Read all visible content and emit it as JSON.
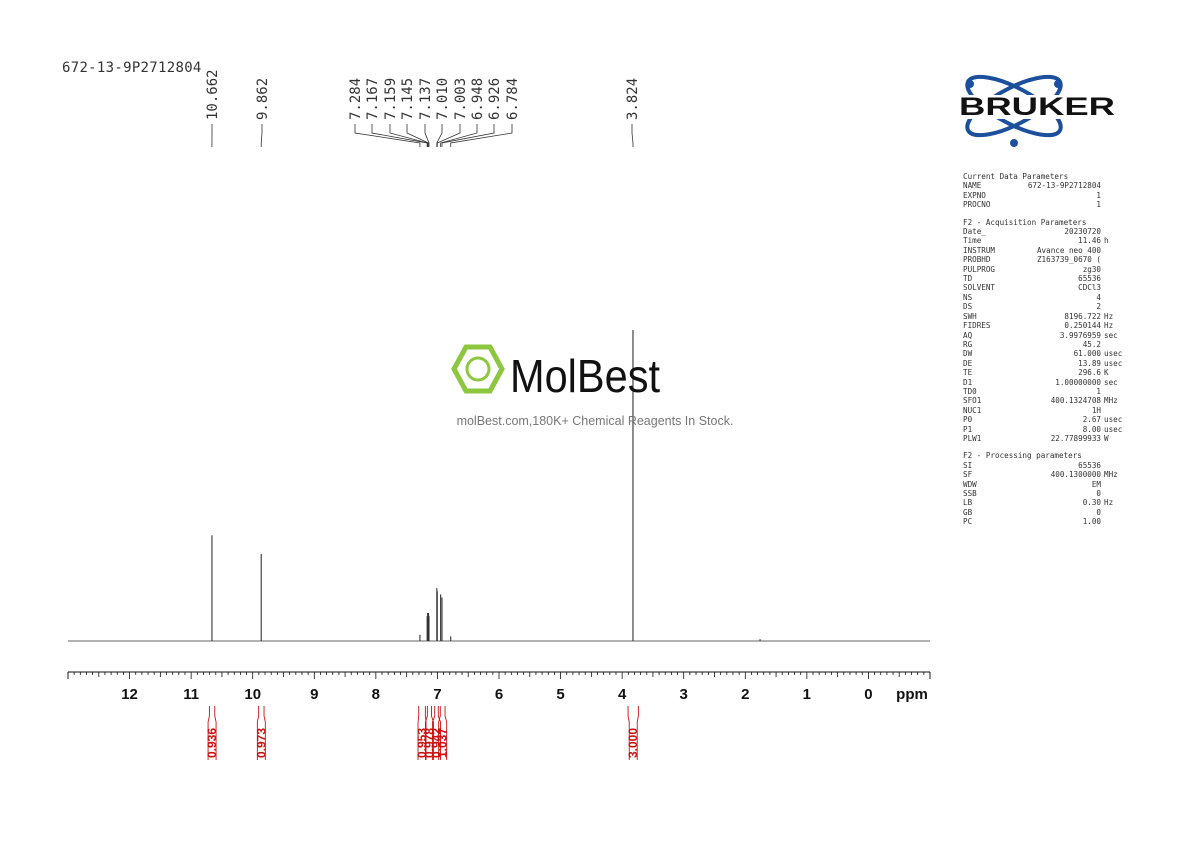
{
  "sample_title": "672-13-9P2712804",
  "watermark": {
    "brand": "MolBest",
    "tagline": "molBest.com,180K+ Chemical Reagents In Stock."
  },
  "logo": {
    "text": "BRUKER",
    "icon": "atom-orbit-icon",
    "color": "#1c4f9c"
  },
  "chart_data": {
    "type": "line",
    "title": "",
    "xlabel": "ppm",
    "ylabel": "",
    "xlim": [
      13,
      -1
    ],
    "x_reversed": true,
    "grid": false,
    "x_ticks": [
      "12",
      "11",
      "10",
      "9",
      "8",
      "7",
      "6",
      "5",
      "4",
      "3",
      "2",
      "1",
      "0"
    ],
    "peak_labels": [
      "10.662",
      "9.862",
      "7.284",
      "7.167",
      "7.159",
      "7.145",
      "7.137",
      "7.010",
      "7.003",
      "6.948",
      "6.926",
      "6.784",
      "3.824"
    ],
    "peaks": [
      {
        "ppm": 10.662,
        "height": 0.34
      },
      {
        "ppm": 9.862,
        "height": 0.28
      },
      {
        "ppm": 7.284,
        "height": 0.02
      },
      {
        "ppm": 7.167,
        "height": 0.08
      },
      {
        "ppm": 7.159,
        "height": 0.09
      },
      {
        "ppm": 7.145,
        "height": 0.09
      },
      {
        "ppm": 7.137,
        "height": 0.08
      },
      {
        "ppm": 7.01,
        "height": 0.17
      },
      {
        "ppm": 7.003,
        "height": 0.16
      },
      {
        "ppm": 6.948,
        "height": 0.15
      },
      {
        "ppm": 6.926,
        "height": 0.14
      },
      {
        "ppm": 6.784,
        "height": 0.015
      },
      {
        "ppm": 3.824,
        "height": 1.0
      },
      {
        "ppm": 1.76,
        "height": 0.006
      }
    ],
    "integrals": [
      {
        "from": 10.72,
        "to": 10.6,
        "value": "0.936"
      },
      {
        "from": 9.92,
        "to": 9.8,
        "value": "0.973"
      },
      {
        "from": 7.32,
        "to": 7.18,
        "value": "0.953"
      },
      {
        "from": 7.18,
        "to": 7.08,
        "value": "0.978"
      },
      {
        "from": 7.06,
        "to": 6.97,
        "value": "0.942"
      },
      {
        "from": 6.97,
        "to": 6.86,
        "value": "1.037"
      },
      {
        "from": 3.92,
        "to": 3.72,
        "value": "3.000"
      }
    ],
    "color": "#333333",
    "integral_color": "#cc1111"
  },
  "params": {
    "sections": [
      {
        "title": "Current Data Parameters",
        "rows": [
          {
            "key": "NAME",
            "value": "672-13-9P2712804",
            "unit": ""
          },
          {
            "key": "EXPNO",
            "value": "1",
            "unit": ""
          },
          {
            "key": "PROCNO",
            "value": "1",
            "unit": ""
          }
        ]
      },
      {
        "title": "F2 - Acquisition Parameters",
        "rows": [
          {
            "key": "Date_",
            "value": "20230720",
            "unit": ""
          },
          {
            "key": "Time",
            "value": "11.46",
            "unit": "h"
          },
          {
            "key": "INSTRUM",
            "value": "Avance neo 400",
            "unit": ""
          },
          {
            "key": "PROBHD",
            "value": "Z163739_0670 (",
            "unit": ""
          },
          {
            "key": "PULPROG",
            "value": "zg30",
            "unit": ""
          },
          {
            "key": "TD",
            "value": "65536",
            "unit": ""
          },
          {
            "key": "SOLVENT",
            "value": "CDCl3",
            "unit": ""
          },
          {
            "key": "NS",
            "value": "4",
            "unit": ""
          },
          {
            "key": "DS",
            "value": "2",
            "unit": ""
          },
          {
            "key": "SWH",
            "value": "8196.722",
            "unit": "Hz"
          },
          {
            "key": "FIDRES",
            "value": "0.250144",
            "unit": "Hz"
          },
          {
            "key": "AQ",
            "value": "3.9976959",
            "unit": "sec"
          },
          {
            "key": "RG",
            "value": "45.2",
            "unit": ""
          },
          {
            "key": "DW",
            "value": "61.000",
            "unit": "usec"
          },
          {
            "key": "DE",
            "value": "13.89",
            "unit": "usec"
          },
          {
            "key": "TE",
            "value": "296.6",
            "unit": "K"
          },
          {
            "key": "D1",
            "value": "1.00000000",
            "unit": "sec"
          },
          {
            "key": "TD0",
            "value": "1",
            "unit": ""
          },
          {
            "key": "SFO1",
            "value": "400.1324708",
            "unit": "MHz"
          },
          {
            "key": "NUC1",
            "value": "1H",
            "unit": ""
          },
          {
            "key": "P0",
            "value": "2.67",
            "unit": "usec"
          },
          {
            "key": "P1",
            "value": "8.00",
            "unit": "usec"
          },
          {
            "key": "PLW1",
            "value": "22.77899933",
            "unit": "W"
          }
        ]
      },
      {
        "title": "F2 - Processing parameters",
        "rows": [
          {
            "key": "SI",
            "value": "65536",
            "unit": ""
          },
          {
            "key": "SF",
            "value": "400.1300000",
            "unit": "MHz"
          },
          {
            "key": "WDW",
            "value": "EM",
            "unit": ""
          },
          {
            "key": "SSB",
            "value": "0",
            "unit": ""
          },
          {
            "key": "LB",
            "value": "0.30",
            "unit": "Hz"
          },
          {
            "key": "GB",
            "value": "0",
            "unit": ""
          },
          {
            "key": "PC",
            "value": "1.00",
            "unit": ""
          }
        ]
      }
    ]
  }
}
